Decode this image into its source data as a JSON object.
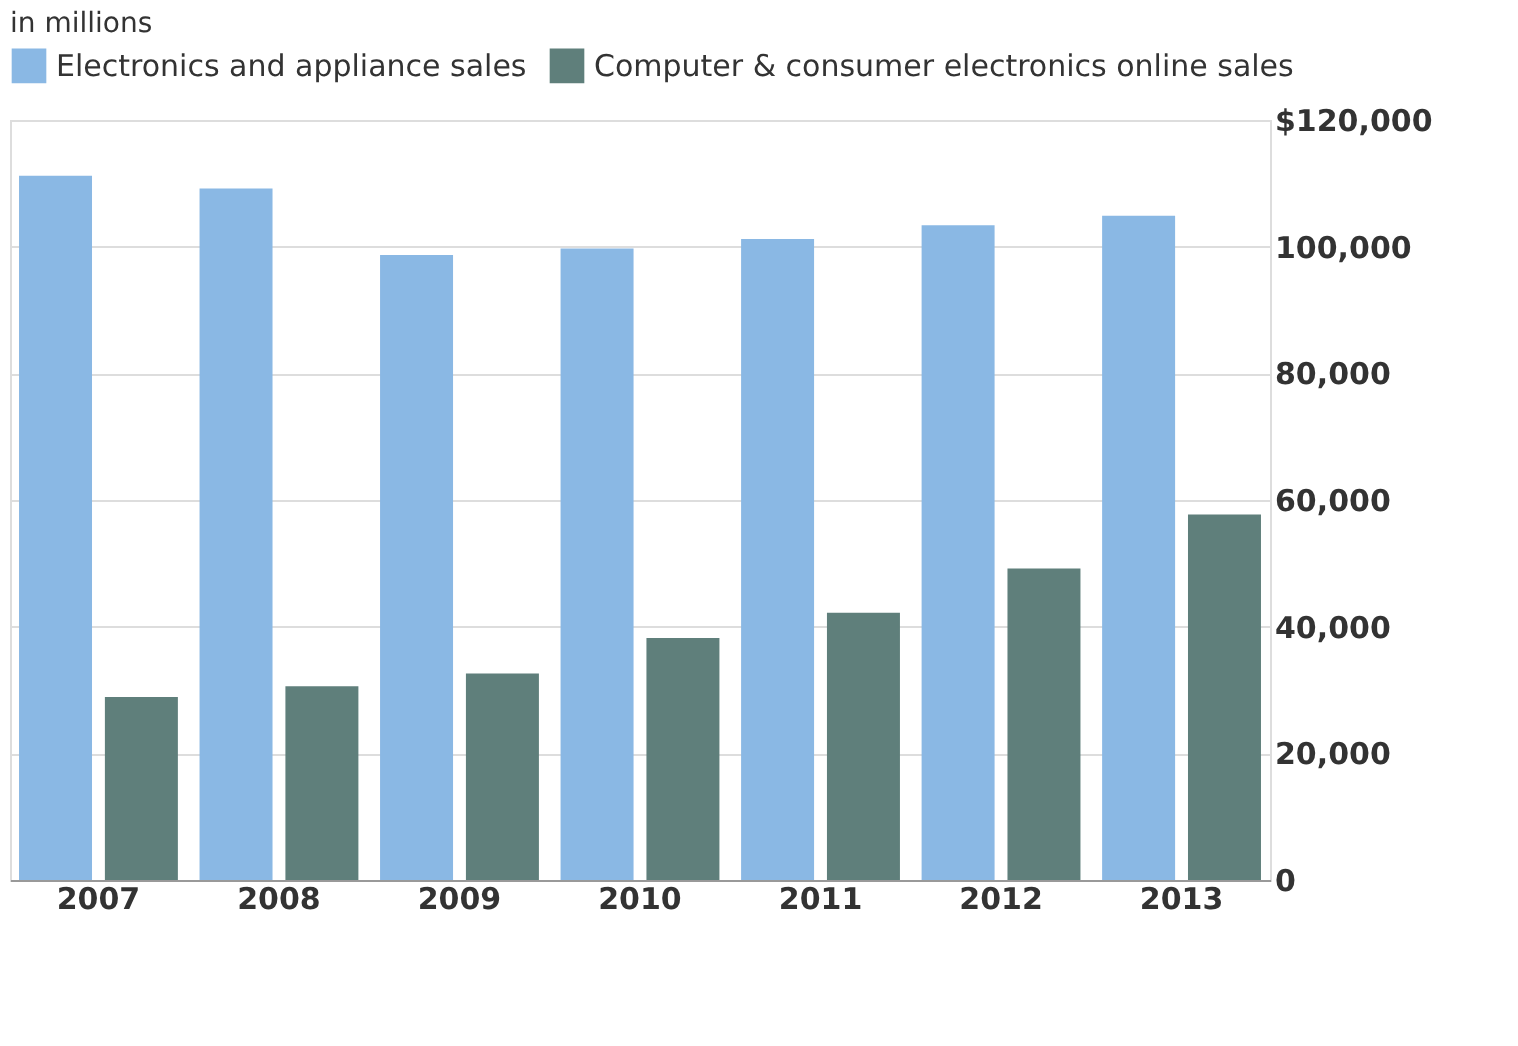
{
  "chart_data": {
    "type": "bar",
    "annotations": [
      "in millions"
    ],
    "categories": [
      "2007",
      "2008",
      "2009",
      "2010",
      "2011",
      "2012",
      "2013"
    ],
    "series": [
      {
        "name": "Electronics and appliance sales",
        "color": "#8ab8e4",
        "values": [
          111200,
          109200,
          98700,
          99700,
          101200,
          103400,
          104900
        ]
      },
      {
        "name": "Computer & consumer electronics online sales",
        "color": "#5f7f7b",
        "values": [
          28900,
          30600,
          32600,
          38200,
          42200,
          49200,
          57700
        ]
      }
    ],
    "ylim": [
      0,
      120000
    ],
    "yticks": [
      0,
      {
        "value": 20000,
        "label": "20,000"
      },
      {
        "value": 40000,
        "label": "40,000"
      },
      {
        "value": 60000,
        "label": "60,000"
      },
      {
        "value": 80000,
        "label": "80,000"
      },
      {
        "value": 100000,
        "label": "100,000"
      },
      {
        "value": 120000,
        "label": "$120,000"
      }
    ],
    "grid": "y",
    "legend": "top left"
  }
}
